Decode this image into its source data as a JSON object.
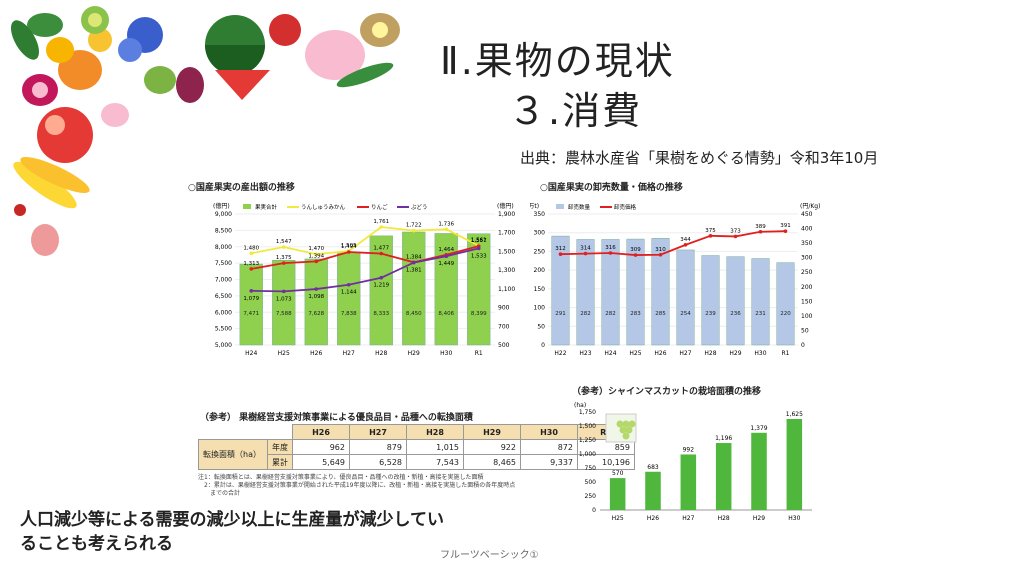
{
  "slide": {
    "title_line1": "Ⅱ.果物の現状",
    "title_line2": "３.消費",
    "source": "出典：農林水産省「果樹をめぐる情勢」令和3年10月",
    "conclusion": "人口減少等による需要の減少以上に生産量が減少していることも考えられる",
    "footer": "フルーツベーシック①"
  },
  "chart_data": [
    {
      "type": "bar+line",
      "title": "○国産果実の産出額の推移",
      "left_unit": "(億円)",
      "right_unit": "(億円)",
      "categories": [
        "H24",
        "H25",
        "H26",
        "H27",
        "H28",
        "H29",
        "H30",
        "R1"
      ],
      "ylim_left": [
        5000,
        9000
      ],
      "left_ticks": [
        "5,000",
        "5,500",
        "6,000",
        "6,500",
        "7,000",
        "7,500",
        "8,000",
        "8,500",
        "9,000"
      ],
      "ylim_right": [
        500,
        1900
      ],
      "right_ticks": [
        "500",
        "700",
        "900",
        "1,100",
        "1,300",
        "1,500",
        "1,700",
        "1,900"
      ],
      "series": [
        {
          "name": "果実合計",
          "kind": "bar",
          "axis": "left",
          "color": "#8fd14f",
          "values": [
            7471,
            7588,
            7628,
            7838,
            8333,
            8450,
            8406,
            8399
          ],
          "labels": [
            "7,471",
            "7,588",
            "7,628",
            "7,838",
            "8,333",
            "8,450",
            "8,406",
            "8,399"
          ]
        },
        {
          "name": "うんしゅうみかん",
          "kind": "line",
          "axis": "right",
          "color": "#f2e93a",
          "values": [
            1480,
            1547,
            1470,
            1505,
            1761,
            1722,
            1736,
            1561
          ],
          "labels": [
            "1,480",
            "1,547",
            "1,470",
            "1,505",
            "1,761",
            "1,722",
            "1,736",
            "1,561"
          ]
        },
        {
          "name": "りんご",
          "kind": "line",
          "axis": "right",
          "color": "#e02020",
          "values": [
            1313,
            1375,
            1394,
            1494,
            1477,
            1384,
            1464,
            1557
          ],
          "labels": [
            "1,313",
            "1,375",
            "1,394",
            "1,494",
            "1,477",
            "1,384",
            "1,464",
            "1,557"
          ]
        },
        {
          "name": "ぶどう",
          "kind": "line",
          "axis": "right",
          "color": "#7030a0",
          "values": [
            1079,
            1073,
            1098,
            1144,
            1219,
            1381,
            1449,
            1533
          ],
          "labels": [
            "1,079",
            "1,073",
            "1,098",
            "1,144",
            "1,219",
            "1,381",
            "1,449",
            "1,533"
          ]
        }
      ]
    },
    {
      "type": "bar+line",
      "title": "○国産果実の卸売数量・価格の推移",
      "left_unit": "(万t)",
      "right_unit": "(円/Kg)",
      "categories": [
        "H22",
        "H23",
        "H24",
        "H25",
        "H26",
        "H27",
        "H28",
        "H29",
        "H30",
        "R1"
      ],
      "ylim_left": [
        0,
        350
      ],
      "left_ticks": [
        "0",
        "50",
        "100",
        "150",
        "200",
        "250",
        "300",
        "350"
      ],
      "ylim_right": [
        0,
        450
      ],
      "right_ticks": [
        "0",
        "50",
        "100",
        "150",
        "200",
        "250",
        "300",
        "350",
        "400",
        "450"
      ],
      "series": [
        {
          "name": "卸売数量",
          "kind": "bar",
          "axis": "left",
          "color": "#b4c7e7",
          "values": [
            291,
            282,
            282,
            283,
            285,
            254,
            239,
            236,
            231,
            220
          ],
          "labels": [
            "291",
            "282",
            "282",
            "283",
            "285",
            "254",
            "239",
            "236",
            "231",
            "220"
          ]
        },
        {
          "name": "卸売価格",
          "kind": "line",
          "axis": "right",
          "color": "#e02020",
          "values": [
            312,
            314,
            316,
            309,
            310,
            344,
            375,
            373,
            389,
            391
          ],
          "labels": [
            "312",
            "314",
            "316",
            "309",
            "310",
            "344",
            "375",
            "373",
            "389",
            "391"
          ]
        }
      ]
    },
    {
      "type": "bar",
      "title": "（参考）シャインマスカットの栽培面積の推移",
      "unit": "(ha)",
      "categories": [
        "H25",
        "H26",
        "H27",
        "H28",
        "H29",
        "H30"
      ],
      "values": [
        570,
        683,
        992,
        1196,
        1379,
        1625
      ],
      "labels": [
        "570",
        "683",
        "992",
        "1,196",
        "1,379",
        "1,625"
      ],
      "ylim": [
        0,
        1750
      ],
      "ticks": [
        "0",
        "250",
        "500",
        "750",
        "1,000",
        "1,250",
        "1,500",
        "1,750"
      ],
      "color": "#4fb83c"
    }
  ],
  "table": {
    "title": "（参考） 果樹経営支援対策事業による優良品目・品種への転換面積",
    "row_header": "転換面積（ha）",
    "columns": [
      "H26",
      "H27",
      "H28",
      "H29",
      "H30",
      "R1"
    ],
    "rows": [
      {
        "label": "年度",
        "values": [
          "962",
          "879",
          "1,015",
          "922",
          "872",
          "859"
        ]
      },
      {
        "label": "累計",
        "values": [
          "5,649",
          "6,528",
          "7,543",
          "8,465",
          "9,337",
          "10,196"
        ]
      }
    ],
    "note1": "注1：転換面積とは、果樹経営支援対策事業により、優良品目・品種への改植・新植・高接を実施した面積",
    "note2": "　2：累計は、果樹経営支援対策事業が開始された平成19年度以降に、改植・新植・高接を実施した面積の各年度時点",
    "note3": "　　までの合計"
  },
  "icons": [
    "fruit-illustration",
    "grape-photo"
  ]
}
